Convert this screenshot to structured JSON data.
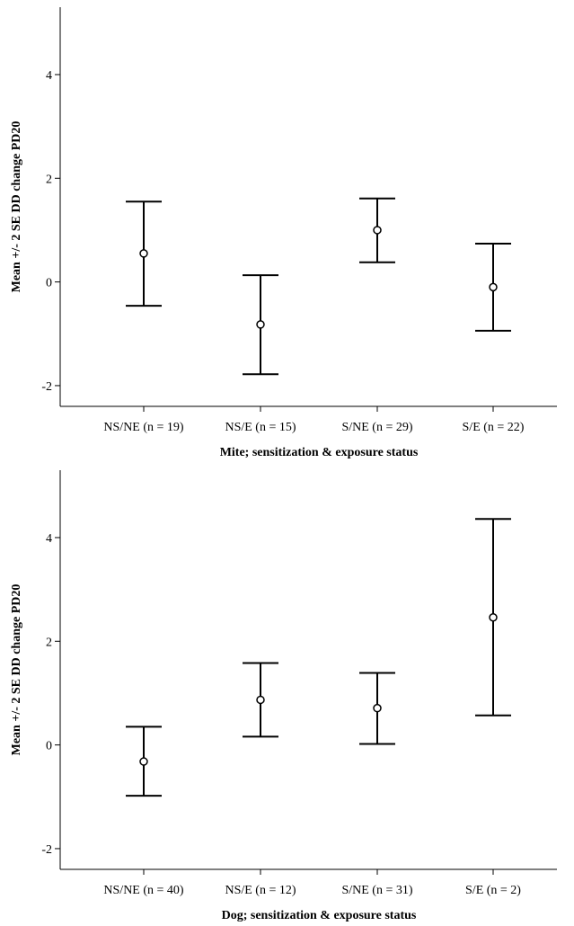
{
  "chart_data": [
    {
      "type": "errorbar",
      "xlabel": "Mite; sensitization & exposure status",
      "ylabel": "Mean +/- 2 SE DD change PD20",
      "ylim": [
        -2.4,
        5.3
      ],
      "yticks": [
        -2,
        0,
        2,
        4
      ],
      "ytick_labels": [
        "-2",
        "0",
        "2",
        "4"
      ],
      "categories": [
        "NS/NE (n = 19)",
        "NS/E (n = 15)",
        "S/NE (n = 29)",
        "S/E (n = 22)"
      ],
      "means": [
        0.55,
        -0.82,
        1.0,
        -0.1
      ],
      "lower": [
        -0.46,
        -1.78,
        0.38,
        -0.94
      ],
      "upper": [
        1.55,
        0.13,
        1.61,
        0.74
      ],
      "grid": false
    },
    {
      "type": "errorbar",
      "xlabel": "Dog; sensitization & exposure status",
      "ylabel": "Mean +/- 2 SE DD change PD20",
      "ylim": [
        -2.4,
        5.3
      ],
      "yticks": [
        -2,
        0,
        2,
        4
      ],
      "ytick_labels": [
        "-2",
        "0",
        "2",
        "4"
      ],
      "categories": [
        "NS/NE (n = 40)",
        "NS/E (n = 12)",
        "S/NE (n = 31)",
        "S/E (n = 2)"
      ],
      "means": [
        -0.32,
        0.87,
        0.71,
        2.46
      ],
      "lower": [
        -0.98,
        0.16,
        0.02,
        0.57
      ],
      "upper": [
        0.35,
        1.58,
        1.39,
        4.36
      ],
      "grid": false
    }
  ]
}
